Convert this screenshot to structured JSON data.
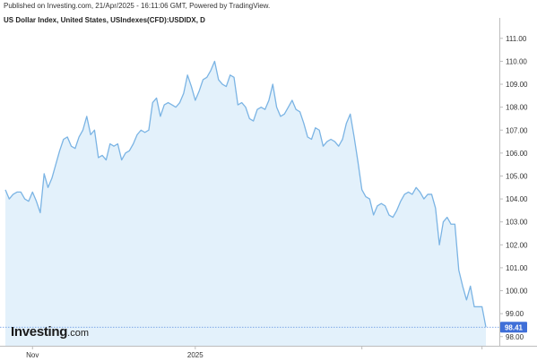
{
  "header": {
    "published": "Published on Investing.com, 21/Apr/2025 - 16:11:06 GMT, Powered by TradingView.",
    "symbol": "US Dollar Index, United States, USIndexes(CFD):USDIDX, D"
  },
  "logo": {
    "brand": "Investing",
    "tld": ".com"
  },
  "colors": {
    "line": "#7bb4e4",
    "fill": "#e3f1fb",
    "last_line": "#5b8fe0",
    "last_label_bg": "#3f6fd8",
    "axis": "#bdbdbd"
  },
  "chart_data": {
    "type": "area",
    "title": "US Dollar Index, United States, USIndexes(CFD):USDIDX, D",
    "xlabel": "",
    "ylabel": "",
    "ylim": [
      97.6,
      111.5
    ],
    "y_ticks": [
      98,
      99,
      100,
      101,
      102,
      103,
      104,
      105,
      106,
      107,
      108,
      109,
      110,
      111
    ],
    "y_tick_labels": [
      "98.00",
      "99.00",
      "100.00",
      "101.00",
      "102.00",
      "103.00",
      "104.00",
      "105.00",
      "106.00",
      "107.00",
      "108.00",
      "109.00",
      "110.00",
      "111.00"
    ],
    "x_ticks": [
      {
        "index": 7,
        "label": "Nov"
      },
      {
        "index": 49,
        "label": "2025"
      },
      {
        "index": 92,
        "label": ""
      },
      {
        "index": 123,
        "label": ""
      }
    ],
    "last_value": 98.41,
    "last_value_label": "98.41",
    "grid": false,
    "values": [
      104.4,
      104.0,
      104.2,
      104.3,
      104.3,
      104.0,
      103.9,
      104.3,
      103.9,
      103.4,
      105.1,
      104.5,
      104.9,
      105.5,
      106.1,
      106.6,
      106.7,
      106.3,
      106.2,
      106.7,
      107.0,
      107.6,
      106.8,
      107.0,
      105.8,
      105.9,
      105.7,
      106.4,
      106.3,
      106.4,
      105.7,
      106.0,
      106.1,
      106.4,
      106.8,
      107.0,
      106.9,
      107.0,
      108.2,
      108.4,
      107.6,
      108.1,
      108.2,
      108.1,
      108.0,
      108.2,
      108.6,
      109.4,
      108.9,
      108.3,
      108.7,
      109.2,
      109.3,
      109.6,
      110.0,
      109.2,
      109.0,
      108.9,
      109.4,
      109.3,
      108.1,
      108.2,
      108.0,
      107.5,
      107.4,
      107.9,
      108.0,
      107.9,
      108.3,
      109.0,
      108.0,
      107.6,
      107.7,
      108.0,
      108.3,
      107.9,
      107.8,
      107.3,
      106.7,
      106.6,
      107.1,
      107.0,
      106.3,
      106.5,
      106.6,
      106.5,
      106.3,
      106.6,
      107.3,
      107.7,
      106.7,
      105.6,
      104.4,
      104.1,
      104.0,
      103.3,
      103.7,
      103.8,
      103.7,
      103.3,
      103.2,
      103.5,
      103.9,
      104.2,
      104.3,
      104.2,
      104.5,
      104.3,
      104.0,
      104.2,
      104.2,
      103.6,
      102.0,
      103.0,
      103.2,
      102.9,
      102.9,
      100.9,
      100.2,
      99.6,
      100.2,
      99.3,
      99.3,
      99.3,
      98.41
    ]
  }
}
